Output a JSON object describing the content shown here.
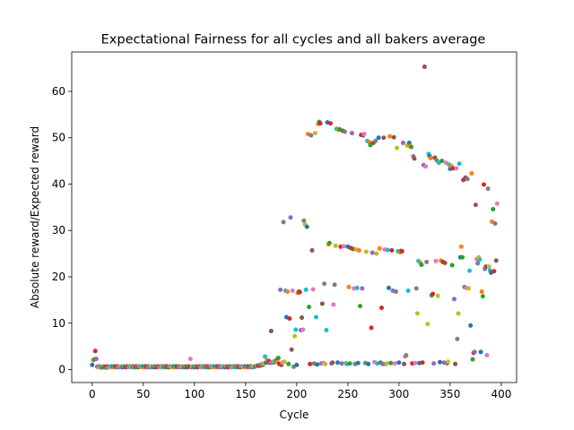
{
  "chart_data": {
    "type": "scatter",
    "title": "Expectational Fairness for all cycles and all bakers average",
    "xlabel": "Cycle",
    "ylabel": "Absolute reward/Expected reward",
    "xlim": [
      -20,
      415
    ],
    "ylim": [
      -2.8,
      68.5
    ],
    "x_ticks": [
      0,
      50,
      100,
      150,
      200,
      250,
      300,
      350,
      400
    ],
    "y_ticks": [
      0,
      10,
      20,
      30,
      40,
      50,
      60
    ],
    "grid": false,
    "legend": "none",
    "palette": [
      "#1f77b4",
      "#ff7f0e",
      "#2ca02c",
      "#d62728",
      "#9467bd",
      "#8c564b",
      "#e377c2",
      "#7f7f7f",
      "#bcbd22",
      "#17becf"
    ],
    "points": [
      [
        0,
        1.0
      ],
      [
        1,
        2.0
      ],
      [
        2,
        2.2
      ],
      [
        3,
        4.0
      ],
      [
        4,
        2.3
      ],
      [
        5,
        0.6
      ],
      [
        6,
        0.5
      ],
      [
        7,
        0.7
      ],
      [
        8,
        0.4
      ],
      [
        9,
        0.6
      ],
      [
        10,
        0.5
      ],
      [
        11,
        0.7
      ],
      [
        12,
        0.5
      ],
      [
        13,
        0.6
      ],
      [
        14,
        0.4
      ],
      [
        15,
        0.7
      ],
      [
        16,
        0.5
      ],
      [
        17,
        0.6
      ],
      [
        18,
        0.5
      ],
      [
        19,
        0.7
      ],
      [
        20,
        0.6
      ],
      [
        21,
        0.5
      ],
      [
        22,
        0.7
      ],
      [
        23,
        0.6
      ],
      [
        24,
        0.5
      ],
      [
        25,
        0.7
      ],
      [
        26,
        0.6
      ],
      [
        27,
        0.5
      ],
      [
        28,
        0.7
      ],
      [
        29,
        0.6
      ],
      [
        30,
        0.5
      ],
      [
        31,
        0.7
      ],
      [
        32,
        0.6
      ],
      [
        33,
        0.5
      ],
      [
        34,
        0.7
      ],
      [
        35,
        0.6
      ],
      [
        36,
        0.5
      ],
      [
        37,
        0.7
      ],
      [
        38,
        0.6
      ],
      [
        39,
        0.5
      ],
      [
        40,
        0.7
      ],
      [
        41,
        0.6
      ],
      [
        42,
        0.5
      ],
      [
        43,
        0.7
      ],
      [
        44,
        0.6
      ],
      [
        45,
        0.5
      ],
      [
        46,
        0.7
      ],
      [
        47,
        0.6
      ],
      [
        48,
        0.5
      ],
      [
        49,
        0.7
      ],
      [
        50,
        0.6
      ],
      [
        51,
        0.5
      ],
      [
        52,
        0.7
      ],
      [
        53,
        0.6
      ],
      [
        54,
        0.5
      ],
      [
        55,
        0.7
      ],
      [
        56,
        0.6
      ],
      [
        57,
        0.5
      ],
      [
        58,
        0.7
      ],
      [
        59,
        0.6
      ],
      [
        60,
        0.5
      ],
      [
        61,
        0.7
      ],
      [
        62,
        0.6
      ],
      [
        63,
        0.5
      ],
      [
        64,
        0.7
      ],
      [
        65,
        0.6
      ],
      [
        66,
        0.5
      ],
      [
        67,
        0.7
      ],
      [
        68,
        0.6
      ],
      [
        69,
        0.5
      ],
      [
        70,
        0.7
      ],
      [
        71,
        0.6
      ],
      [
        72,
        0.5
      ],
      [
        73,
        0.7
      ],
      [
        74,
        0.6
      ],
      [
        75,
        0.5
      ],
      [
        76,
        0.7
      ],
      [
        77,
        0.6
      ],
      [
        78,
        0.5
      ],
      [
        79,
        0.7
      ],
      [
        80,
        0.6
      ],
      [
        81,
        0.5
      ],
      [
        82,
        0.7
      ],
      [
        83,
        0.6
      ],
      [
        84,
        0.5
      ],
      [
        85,
        0.7
      ],
      [
        86,
        0.6
      ],
      [
        87,
        0.5
      ],
      [
        88,
        0.7
      ],
      [
        89,
        0.6
      ],
      [
        90,
        0.5
      ],
      [
        91,
        0.7
      ],
      [
        92,
        0.6
      ],
      [
        93,
        0.5
      ],
      [
        94,
        0.7
      ],
      [
        95,
        0.6
      ],
      [
        96,
        2.3
      ],
      [
        97,
        0.5
      ],
      [
        98,
        0.7
      ],
      [
        99,
        0.6
      ],
      [
        100,
        0.5
      ],
      [
        101,
        0.7
      ],
      [
        102,
        0.6
      ],
      [
        103,
        0.5
      ],
      [
        104,
        0.7
      ],
      [
        105,
        0.6
      ],
      [
        106,
        0.5
      ],
      [
        107,
        0.7
      ],
      [
        108,
        0.6
      ],
      [
        109,
        0.5
      ],
      [
        110,
        0.7
      ],
      [
        111,
        0.6
      ],
      [
        112,
        0.5
      ],
      [
        113,
        0.7
      ],
      [
        114,
        0.6
      ],
      [
        115,
        0.5
      ],
      [
        116,
        0.7
      ],
      [
        117,
        0.6
      ],
      [
        118,
        0.5
      ],
      [
        119,
        0.7
      ],
      [
        120,
        0.6
      ],
      [
        121,
        0.5
      ],
      [
        122,
        0.7
      ],
      [
        123,
        0.6
      ],
      [
        124,
        0.5
      ],
      [
        125,
        0.7
      ],
      [
        126,
        0.6
      ],
      [
        127,
        0.5
      ],
      [
        128,
        0.7
      ],
      [
        129,
        0.6
      ],
      [
        130,
        0.5
      ],
      [
        131,
        0.7
      ],
      [
        132,
        0.6
      ],
      [
        133,
        0.5
      ],
      [
        134,
        0.7
      ],
      [
        135,
        0.6
      ],
      [
        136,
        0.5
      ],
      [
        137,
        0.7
      ],
      [
        138,
        0.6
      ],
      [
        139,
        0.5
      ],
      [
        140,
        0.7
      ],
      [
        141,
        0.6
      ],
      [
        142,
        0.5
      ],
      [
        143,
        0.7
      ],
      [
        144,
        0.6
      ],
      [
        145,
        0.5
      ],
      [
        146,
        0.7
      ],
      [
        147,
        0.6
      ],
      [
        148,
        0.5
      ],
      [
        149,
        0.7
      ],
      [
        150,
        0.6
      ],
      [
        151,
        0.5
      ],
      [
        152,
        0.7
      ],
      [
        153,
        0.6
      ],
      [
        154,
        0.5
      ],
      [
        155,
        0.7
      ],
      [
        156,
        0.6
      ],
      [
        157,
        0.5
      ],
      [
        158,
        0.7
      ],
      [
        159,
        0.6
      ],
      [
        160,
        0.7
      ],
      [
        161,
        0.8
      ],
      [
        162,
        0.9
      ],
      [
        163,
        0.8
      ],
      [
        164,
        1.0
      ],
      [
        165,
        0.9
      ],
      [
        166,
        1.2
      ],
      [
        167,
        1.0
      ],
      [
        168,
        1.3
      ],
      [
        169,
        2.8
      ],
      [
        170,
        1.5
      ],
      [
        171,
        2.0
      ],
      [
        172,
        1.5
      ],
      [
        173,
        1.8
      ],
      [
        174,
        1.4
      ],
      [
        175,
        8.3
      ],
      [
        176,
        1.6
      ],
      [
        177,
        1.5
      ],
      [
        178,
        1.8
      ],
      [
        179,
        1.6
      ],
      [
        180,
        2.0
      ],
      [
        181,
        1.7
      ],
      [
        182,
        2.5
      ],
      [
        183,
        1.2
      ],
      [
        184,
        17.2
      ],
      [
        185,
        1.0
      ],
      [
        186,
        1.5
      ],
      [
        187,
        31.8
      ],
      [
        188,
        1.7
      ],
      [
        189,
        17.0
      ],
      [
        190,
        11.3
      ],
      [
        191,
        16.8
      ],
      [
        192,
        1.2
      ],
      [
        193,
        11.0
      ],
      [
        194,
        32.8
      ],
      [
        195,
        4.3
      ],
      [
        196,
        17.0
      ],
      [
        197,
        0.6
      ],
      [
        198,
        7.2
      ],
      [
        199,
        8.6
      ],
      [
        200,
        1.0
      ],
      [
        201,
        16.5
      ],
      [
        202,
        16.8
      ],
      [
        203,
        16.7
      ],
      [
        204,
        8.5
      ],
      [
        205,
        11.2
      ],
      [
        206,
        8.6
      ],
      [
        207,
        32.1
      ],
      [
        208,
        31.3
      ],
      [
        209,
        17.2
      ],
      [
        210,
        30.8
      ],
      [
        211,
        50.8
      ],
      [
        212,
        13.5
      ],
      [
        213,
        1.2
      ],
      [
        214,
        50.5
      ],
      [
        215,
        25.7
      ],
      [
        216,
        17.3
      ],
      [
        217,
        1.3
      ],
      [
        218,
        51.0
      ],
      [
        219,
        11.3
      ],
      [
        220,
        1.1
      ],
      [
        221,
        53.0
      ],
      [
        222,
        53.4
      ],
      [
        223,
        53.1
      ],
      [
        224,
        1.3
      ],
      [
        225,
        14.2
      ],
      [
        226,
        1.4
      ],
      [
        227,
        18.5
      ],
      [
        228,
        1.2
      ],
      [
        229,
        8.5
      ],
      [
        230,
        53.3
      ],
      [
        231,
        27.0
      ],
      [
        232,
        27.3
      ],
      [
        233,
        53.1
      ],
      [
        234,
        1.3
      ],
      [
        235,
        1.5
      ],
      [
        236,
        14.0
      ],
      [
        237,
        18.3
      ],
      [
        238,
        26.7
      ],
      [
        239,
        51.9
      ],
      [
        240,
        1.5
      ],
      [
        241,
        51.7
      ],
      [
        242,
        51.8
      ],
      [
        243,
        26.5
      ],
      [
        244,
        1.3
      ],
      [
        245,
        51.5
      ],
      [
        246,
        26.6
      ],
      [
        247,
        51.3
      ],
      [
        248,
        1.4
      ],
      [
        249,
        1.2
      ],
      [
        250,
        26.5
      ],
      [
        251,
        17.8
      ],
      [
        252,
        1.3
      ],
      [
        253,
        26.2
      ],
      [
        254,
        51.0
      ],
      [
        255,
        26.0
      ],
      [
        256,
        17.5
      ],
      [
        257,
        1.2
      ],
      [
        258,
        25.9
      ],
      [
        259,
        17.6
      ],
      [
        260,
        1.4
      ],
      [
        261,
        25.7
      ],
      [
        262,
        13.7
      ],
      [
        263,
        50.6
      ],
      [
        264,
        17.5
      ],
      [
        265,
        50.5
      ],
      [
        266,
        50.8
      ],
      [
        267,
        1.4
      ],
      [
        268,
        25.4
      ],
      [
        269,
        49.3
      ],
      [
        270,
        1.2
      ],
      [
        271,
        49.0
      ],
      [
        272,
        48.4
      ],
      [
        273,
        9.0
      ],
      [
        274,
        25.2
      ],
      [
        275,
        48.9
      ],
      [
        276,
        1.6
      ],
      [
        277,
        49.3
      ],
      [
        278,
        25.0
      ],
      [
        279,
        1.3
      ],
      [
        280,
        50.0
      ],
      [
        281,
        26.1
      ],
      [
        282,
        1.5
      ],
      [
        283,
        13.3
      ],
      [
        284,
        1.2
      ],
      [
        285,
        50.0
      ],
      [
        286,
        25.9
      ],
      [
        287,
        1.2
      ],
      [
        288,
        1.3
      ],
      [
        289,
        25.8
      ],
      [
        290,
        17.6
      ],
      [
        291,
        50.3
      ],
      [
        292,
        1.4
      ],
      [
        293,
        25.7
      ],
      [
        294,
        17.0
      ],
      [
        295,
        50.1
      ],
      [
        296,
        1.3
      ],
      [
        297,
        16.8
      ],
      [
        298,
        47.8
      ],
      [
        299,
        25.5
      ],
      [
        300,
        1.5
      ],
      [
        301,
        25.3
      ],
      [
        302,
        25.6
      ],
      [
        303,
        25.5
      ],
      [
        304,
        48.9
      ],
      [
        305,
        1.2
      ],
      [
        306,
        2.8
      ],
      [
        307,
        3.1
      ],
      [
        308,
        48.3
      ],
      [
        309,
        17.0
      ],
      [
        310,
        48.9
      ],
      [
        311,
        48.2
      ],
      [
        312,
        48.0
      ],
      [
        313,
        1.3
      ],
      [
        314,
        46.0
      ],
      [
        315,
        45.5
      ],
      [
        316,
        1.4
      ],
      [
        317,
        17.5
      ],
      [
        318,
        12.1
      ],
      [
        319,
        23.4
      ],
      [
        320,
        1.4
      ],
      [
        321,
        23.0
      ],
      [
        322,
        22.6
      ],
      [
        323,
        1.5
      ],
      [
        324,
        44.1
      ],
      [
        325,
        65.3
      ],
      [
        326,
        43.8
      ],
      [
        327,
        23.2
      ],
      [
        328,
        9.8
      ],
      [
        329,
        46.5
      ],
      [
        330,
        46.0
      ],
      [
        331,
        45.6
      ],
      [
        332,
        16.0
      ],
      [
        333,
        16.3
      ],
      [
        334,
        1.3
      ],
      [
        335,
        45.7
      ],
      [
        336,
        23.4
      ],
      [
        337,
        45.1
      ],
      [
        338,
        15.9
      ],
      [
        339,
        44.6
      ],
      [
        340,
        1.6
      ],
      [
        341,
        23.5
      ],
      [
        342,
        45.0
      ],
      [
        343,
        23.2
      ],
      [
        344,
        1.5
      ],
      [
        345,
        23.0
      ],
      [
        346,
        44.6
      ],
      [
        347,
        1.3
      ],
      [
        348,
        1.7
      ],
      [
        349,
        44.2
      ],
      [
        350,
        43.3
      ],
      [
        351,
        43.9
      ],
      [
        352,
        22.5
      ],
      [
        353,
        43.4
      ],
      [
        354,
        15.2
      ],
      [
        355,
        1.2
      ],
      [
        356,
        43.4
      ],
      [
        357,
        6.6
      ],
      [
        358,
        12.1
      ],
      [
        359,
        44.4
      ],
      [
        360,
        24.2
      ],
      [
        361,
        26.5
      ],
      [
        362,
        24.2
      ],
      [
        363,
        40.9
      ],
      [
        364,
        17.8
      ],
      [
        365,
        41.4
      ],
      [
        366,
        17.6
      ],
      [
        367,
        41.1
      ],
      [
        368,
        17.5
      ],
      [
        369,
        21.3
      ],
      [
        370,
        9.5
      ],
      [
        371,
        42.3
      ],
      [
        372,
        2.2
      ],
      [
        373,
        3.6
      ],
      [
        374,
        3.8
      ],
      [
        375,
        35.5
      ],
      [
        376,
        23.8
      ],
      [
        377,
        22.9
      ],
      [
        378,
        24.2
      ],
      [
        379,
        23.7
      ],
      [
        380,
        3.8
      ],
      [
        381,
        16.8
      ],
      [
        382,
        15.8
      ],
      [
        383,
        39.9
      ],
      [
        384,
        21.7
      ],
      [
        385,
        22.2
      ],
      [
        386,
        3.1
      ],
      [
        387,
        39.0
      ],
      [
        388,
        22.2
      ],
      [
        389,
        21.4
      ],
      [
        390,
        20.9
      ],
      [
        391,
        31.9
      ],
      [
        392,
        34.6
      ],
      [
        393,
        21.2
      ],
      [
        394,
        31.5
      ],
      [
        395,
        23.5
      ],
      [
        396,
        35.8
      ]
    ]
  }
}
